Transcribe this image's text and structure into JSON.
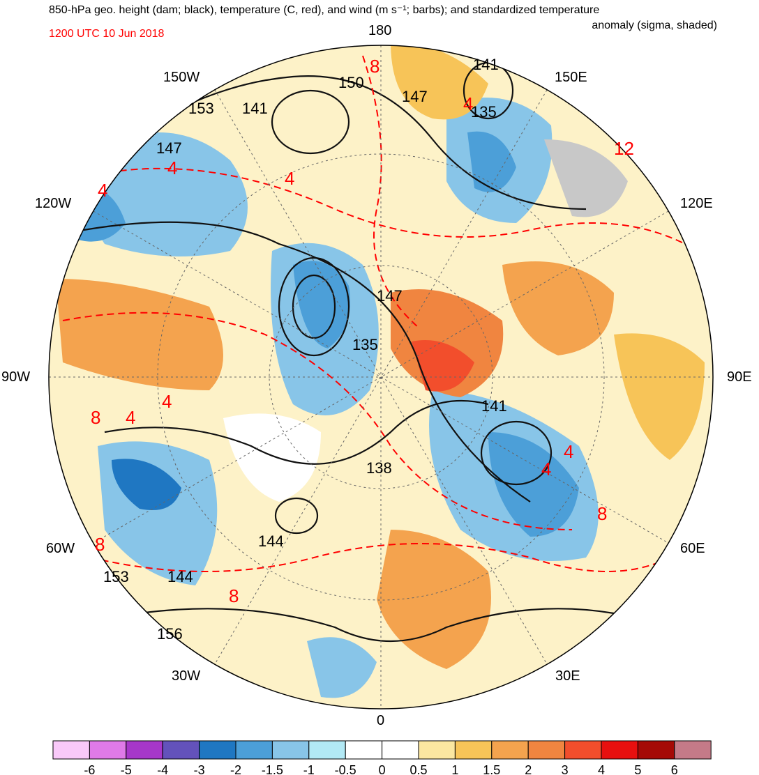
{
  "title_line1": "850-hPa geo. height (dam; black), temperature (C, red), and wind (m s⁻¹; barbs); and standardized temperature",
  "title_line2": "anomaly (sigma, shaded)",
  "date_label": "1200 UTC 10 Jun 2018",
  "longitude_labels": {
    "lon_180": "180",
    "lon_150W": "150W",
    "lon_150E": "150E",
    "lon_120W": "120W",
    "lon_120E": "120E",
    "lon_90W": "90W",
    "lon_90E": "90E",
    "lon_60W": "60W",
    "lon_60E": "60E",
    "lon_30W": "30W",
    "lon_30E": "30E",
    "lon_0": "0"
  },
  "height_labels": [
    "150",
    "147",
    "141",
    "135",
    "153",
    "141",
    "147",
    "147",
    "135",
    "141",
    "138",
    "144",
    "153",
    "144",
    "156"
  ],
  "temperature_labels": [
    "8",
    "4",
    "12",
    "4",
    "4",
    "4",
    "4",
    "8",
    "4",
    "4",
    "8",
    "8",
    "8",
    "4"
  ],
  "colorbar": {
    "colors": [
      "#f9c9f9",
      "#df7ae8",
      "#a637c9",
      "#6352bb",
      "#1f77c2",
      "#4c9fd8",
      "#88c5e8",
      "#b2e9f5",
      "#ffffff",
      "#ffffff",
      "#fbe7a1",
      "#f7c458",
      "#f4a34e",
      "#f08540",
      "#f24e2c",
      "#e8100f",
      "#a50a06",
      "#c47a88"
    ],
    "tick_labels": [
      "-6",
      "-5",
      "-4",
      "-3",
      "-2",
      "-1.5",
      "-1",
      "-0.5",
      "0",
      "0.5",
      "1",
      "1.5",
      "2",
      "3",
      "4",
      "5",
      "6"
    ]
  }
}
